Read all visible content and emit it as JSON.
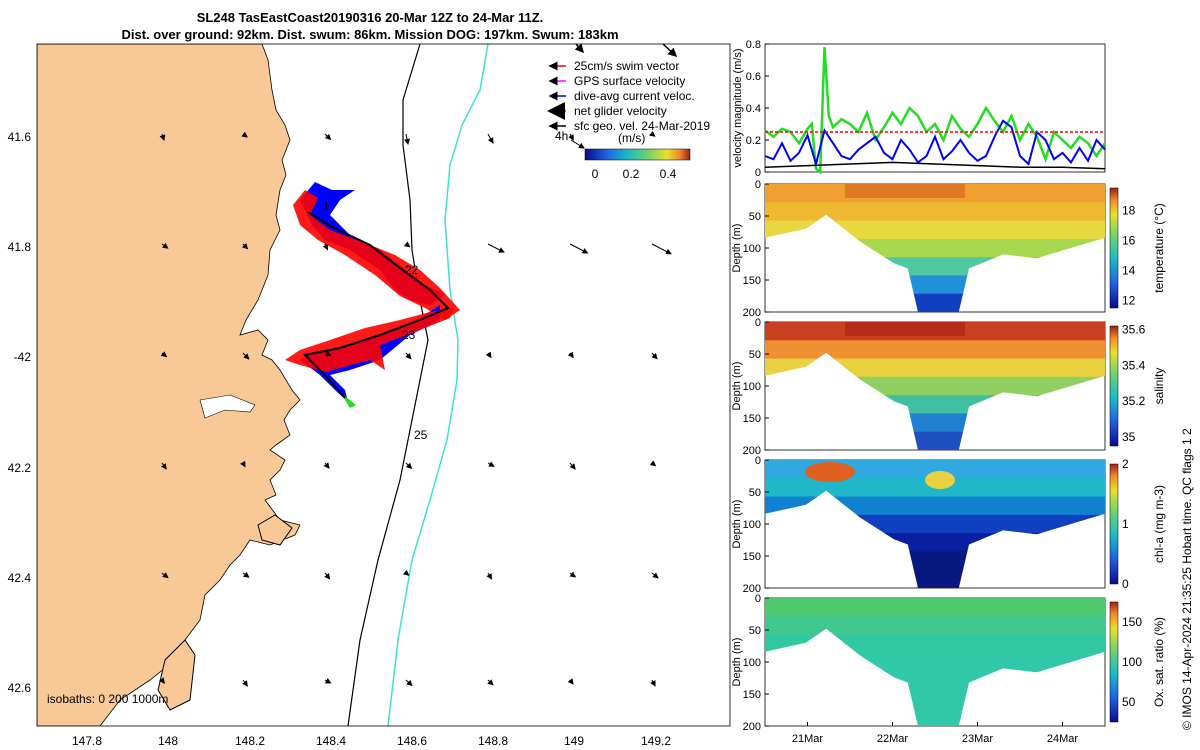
{
  "title": {
    "line1": "SL248 TasEastCoast20190316 20-Mar 12Z to 24-Mar 11Z.",
    "line2": "Dist. over ground: 92km. Dist. swum: 86km. Mission DOG: 197km. Swum: 183km"
  },
  "colors": {
    "land": "#f8c896",
    "swim": "#ff0000",
    "gps": "#ff00ff",
    "dive": "#0000ff",
    "net": "#22dd22",
    "geo": "#000000",
    "isobath1000": "#40e0d0"
  },
  "map": {
    "lon_ticks": [
      "147.8",
      "148",
      "148.2",
      "148.4",
      "148.6",
      "148.8",
      "149",
      "149.2"
    ],
    "lat_ticks": [
      "41.6",
      "41.8",
      "-42",
      "42.2",
      "42.4",
      "42.6"
    ],
    "track_labels": [
      "1",
      "22",
      "23",
      "25"
    ],
    "legend": [
      {
        "label": "25cm/s swim vector",
        "color": "#ff0000"
      },
      {
        "label": "GPS surface velocity",
        "color": "#ff00ff"
      },
      {
        "label": "dive-avg current veloc.",
        "color": "#0000ff"
      },
      {
        "label": "net glider velocity",
        "color": "#22dd22"
      },
      {
        "label": "sfc geo. vel. 24-Mar-2019",
        "color": "#000000"
      }
    ],
    "colorbar_label": "(m/s)",
    "colorbar_ticks": [
      "0",
      "0.2",
      "0.4"
    ],
    "h4_label": "4h",
    "isobaths_label": "isobaths: 0   200   1000m"
  },
  "chart_data": [
    {
      "type": "line",
      "title": "",
      "ylabel": "velocity magnitude (m/s)",
      "ylim": [
        0,
        0.8
      ],
      "yticks": [
        "0",
        "0.2",
        "0.4",
        "0.6",
        "0.8"
      ],
      "xlim": [
        20.5,
        24.5
      ],
      "series": [
        {
          "name": "net glider velocity",
          "color": "#22dd22",
          "x": [
            20.5,
            20.6,
            20.7,
            20.8,
            20.9,
            21.0,
            21.05,
            21.1,
            21.15,
            21.2,
            21.25,
            21.3,
            21.4,
            21.5,
            21.6,
            21.7,
            21.8,
            21.9,
            22.0,
            22.1,
            22.2,
            22.3,
            22.4,
            22.5,
            22.6,
            22.7,
            22.8,
            22.9,
            23.0,
            23.1,
            23.2,
            23.3,
            23.4,
            23.5,
            23.6,
            23.7,
            23.8,
            23.9,
            24.0,
            24.1,
            24.2,
            24.3,
            24.4,
            24.5
          ],
          "y": [
            0.26,
            0.22,
            0.27,
            0.25,
            0.18,
            0.27,
            0.3,
            0.02,
            0.0,
            0.78,
            0.35,
            0.28,
            0.33,
            0.3,
            0.25,
            0.37,
            0.2,
            0.28,
            0.37,
            0.3,
            0.4,
            0.35,
            0.25,
            0.3,
            0.2,
            0.35,
            0.27,
            0.22,
            0.3,
            0.4,
            0.32,
            0.25,
            0.35,
            0.2,
            0.3,
            0.22,
            0.08,
            0.25,
            0.2,
            0.15,
            0.22,
            0.18,
            0.1,
            0.18
          ]
        },
        {
          "name": "dive-avg current",
          "color": "#0000ff",
          "x": [
            20.5,
            20.6,
            20.7,
            20.8,
            20.9,
            21.0,
            21.1,
            21.2,
            21.3,
            21.4,
            21.5,
            21.6,
            21.7,
            21.8,
            21.9,
            22.0,
            22.1,
            22.2,
            22.3,
            22.4,
            22.5,
            22.6,
            22.7,
            22.8,
            22.9,
            23.0,
            23.1,
            23.2,
            23.3,
            23.4,
            23.5,
            23.6,
            23.7,
            23.8,
            23.9,
            24.0,
            24.1,
            24.2,
            24.3,
            24.4,
            24.5
          ],
          "y": [
            0.1,
            0.08,
            0.18,
            0.07,
            0.12,
            0.23,
            0.05,
            0.26,
            0.18,
            0.1,
            0.08,
            0.14,
            0.18,
            0.22,
            0.12,
            0.08,
            0.2,
            0.14,
            0.06,
            0.1,
            0.22,
            0.08,
            0.13,
            0.2,
            0.12,
            0.07,
            0.1,
            0.22,
            0.32,
            0.28,
            0.1,
            0.05,
            0.25,
            0.2,
            0.08,
            0.12,
            0.06,
            0.15,
            0.07,
            0.2,
            0.14
          ]
        },
        {
          "name": "sfc geo. vel.",
          "color": "#000000",
          "x": [
            20.5,
            21.0,
            21.5,
            22.0,
            22.5,
            23.0,
            23.5,
            24.0,
            24.5
          ],
          "y": [
            0.03,
            0.04,
            0.05,
            0.06,
            0.05,
            0.04,
            0.03,
            0.03,
            0.02
          ]
        },
        {
          "name": "25cm/s swim",
          "color": "#ff0000",
          "dashed": true,
          "x": [
            20.5,
            24.5
          ],
          "y": [
            0.25,
            0.25
          ]
        }
      ]
    },
    {
      "type": "heatmap",
      "variable": "temperature",
      "colorbar_label": "temperature (°C)",
      "ylabel": "Depth (m)",
      "ylim": [
        200,
        0
      ],
      "yticks": [
        "0",
        "50",
        "100",
        "150",
        "200"
      ],
      "clim": [
        11.5,
        19.5
      ],
      "cticks": [
        "12",
        "14",
        "16",
        "18"
      ]
    },
    {
      "type": "heatmap",
      "variable": "salinity",
      "colorbar_label": "salinity",
      "ylabel": "Depth (m)",
      "ylim": [
        200,
        0
      ],
      "yticks": [
        "0",
        "50",
        "100",
        "150",
        "200"
      ],
      "clim": [
        34.95,
        35.62
      ],
      "cticks": [
        "35",
        "35.2",
        "35.4",
        "35.6"
      ]
    },
    {
      "type": "heatmap",
      "variable": "chl-a",
      "colorbar_label": "chl-a (mg m-3)",
      "ylabel": "Depth (m)",
      "ylim": [
        200,
        0
      ],
      "yticks": [
        "0",
        "50",
        "100",
        "150",
        "200"
      ],
      "clim": [
        0,
        2
      ],
      "cticks": [
        "0",
        "1",
        "2"
      ]
    },
    {
      "type": "heatmap",
      "variable": "oxygen",
      "colorbar_label": "Ox. sat. ratio (%)",
      "ylabel": "Depth (m)",
      "ylim": [
        200,
        0
      ],
      "yticks": [
        "0",
        "50",
        "100",
        "150",
        "200"
      ],
      "clim": [
        25,
        175
      ],
      "cticks": [
        "50",
        "100",
        "150"
      ],
      "xticks": [
        "21Mar",
        "22Mar",
        "23Mar",
        "24Mar"
      ]
    }
  ],
  "qc_label": "QC flags 1  2",
  "credit": "© IMOS 14-Apr-2024 21:35:25 Hobart time."
}
